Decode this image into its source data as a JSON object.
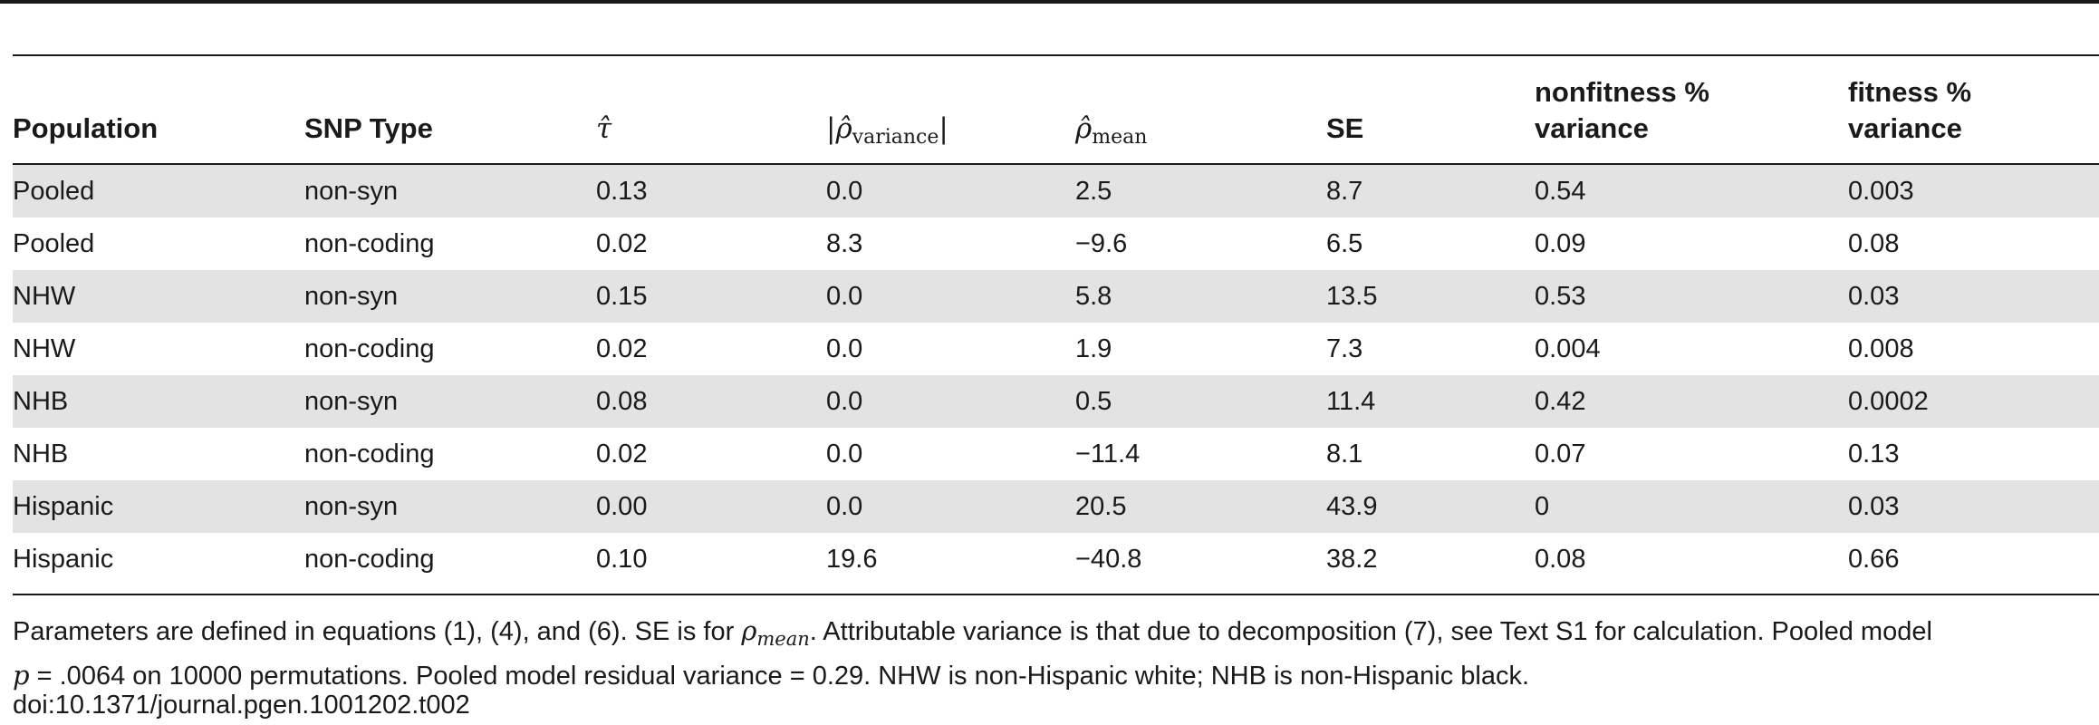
{
  "table": {
    "headers": {
      "population": "Population",
      "snp_type": "SNP Type",
      "tau": "τ̂",
      "rho_variance_sym": "|ρ̂",
      "rho_variance_sub": "variance",
      "rho_variance_close": "|",
      "rho_mean_sym": "ρ̂",
      "rho_mean_sub": "mean",
      "se": "SE",
      "nonfitness_line1": "nonfitness %",
      "nonfitness_line2": "variance",
      "fitness_line1": "fitness %",
      "fitness_line2": "variance"
    },
    "rows": [
      [
        "Pooled",
        "non-syn",
        "0.13",
        "0.0",
        "2.5",
        "8.7",
        "0.54",
        "0.003"
      ],
      [
        "Pooled",
        "non-coding",
        "0.02",
        "8.3",
        "−9.6",
        "6.5",
        "0.09",
        "0.08"
      ],
      [
        "NHW",
        "non-syn",
        "0.15",
        "0.0",
        "5.8",
        "13.5",
        "0.53",
        "0.03"
      ],
      [
        "NHW",
        "non-coding",
        "0.02",
        "0.0",
        "1.9",
        "7.3",
        "0.004",
        "0.008"
      ],
      [
        "NHB",
        "non-syn",
        "0.08",
        "0.0",
        "0.5",
        "11.4",
        "0.42",
        "0.0002"
      ],
      [
        "NHB",
        "non-coding",
        "0.02",
        "0.0",
        "−11.4",
        "8.1",
        "0.07",
        "0.13"
      ],
      [
        "Hispanic",
        "non-syn",
        "0.00",
        "0.0",
        "20.5",
        "43.9",
        "0",
        "0.03"
      ],
      [
        "Hispanic",
        "non-coding",
        "0.10",
        "19.6",
        "−40.8",
        "38.2",
        "0.08",
        "0.66"
      ]
    ]
  },
  "footnote": {
    "part1": "Parameters are defined in equations (1), (4), and (6). SE is for ",
    "rho_sym": "ρ",
    "rho_sub": "mean",
    "part2": ". Attributable variance is that due to decomposition (7), see Text S1 for calculation. Pooled model",
    "p_sym": "p",
    "part3": " = .0064 on 10000 permutations. Pooled model residual variance = 0.29. NHW is non-Hispanic white; NHB is non-Hispanic black."
  },
  "doi": "doi:10.1371/journal.pgen.1001202.t002"
}
